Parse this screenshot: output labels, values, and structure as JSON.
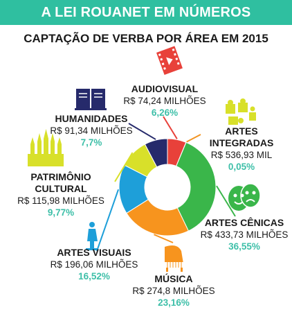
{
  "header": {
    "banner": "A LEI ROUANET EM NÚMEROS",
    "subtitle": "CAPTAÇÃO DE VERBA POR ÁREA EM 2015"
  },
  "chart_data": {
    "type": "pie",
    "title": "CAPTAÇÃO DE VERBA POR ÁREA EM 2015",
    "donut": true,
    "slices": [
      {
        "name": "AUDIOVISUAL",
        "value_text": "R$ 74,24 MILHÕES",
        "percent_text": "6,26%",
        "value": 6.26,
        "color": "#e8413a",
        "icon": "film-icon"
      },
      {
        "name": "ARTES INTEGRADAS",
        "value_text": "R$ 536,93 MIL",
        "percent_text": "0,05%",
        "value": 0.05,
        "color": "#f29422",
        "icon": "puzzle-icon"
      },
      {
        "name": "ARTES CÊNICAS",
        "value_text": "R$ 433,73 MILHÕES",
        "percent_text": "36,55%",
        "value": 36.55,
        "color": "#3ab64a",
        "icon": "theater-masks-icon"
      },
      {
        "name": "MÚSICA",
        "value_text": "R$ 274,8 MILHÕES",
        "percent_text": "23,16%",
        "value": 23.16,
        "color": "#f7941e",
        "icon": "piano-icon"
      },
      {
        "name": "ARTES VISUAIS",
        "value_text": "R$ 196,06 MILHÕES",
        "percent_text": "16,52%",
        "value": 16.52,
        "color": "#1e9fd9",
        "icon": "statue-icon"
      },
      {
        "name": "PATRIMÔNIO CULTURAL",
        "value_text": "R$ 115,98 MILHÕES",
        "percent_text": "9,77%",
        "value": 9.77,
        "color": "#d8e02a",
        "icon": "cathedral-icon"
      },
      {
        "name": "HUMANIDADES",
        "value_text": "R$ 91,34 MILHÕES",
        "percent_text": "7,7%",
        "value": 7.7,
        "color": "#262a6b",
        "icon": "book-icon"
      }
    ]
  }
}
